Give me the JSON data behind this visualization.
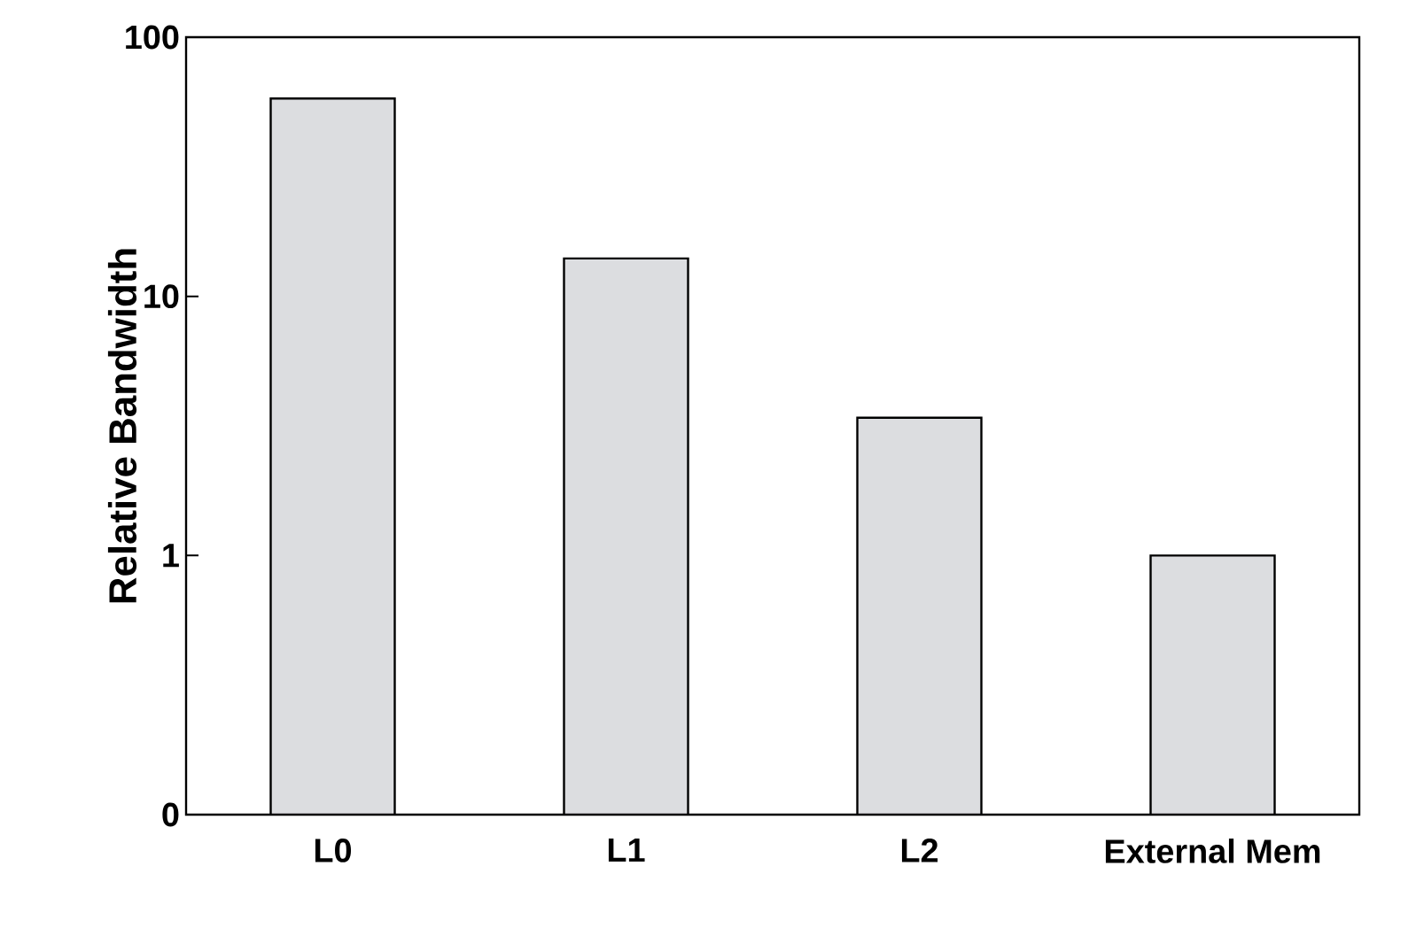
{
  "chart_data": {
    "type": "bar",
    "ylabel": "Relative Bandwidth",
    "categories": [
      "L0",
      "L1",
      "L2",
      "External Mem"
    ],
    "values": [
      58,
      14,
      3.4,
      1.0
    ],
    "color": "#dcdde0",
    "log": "y",
    "ylim": [
      0.1,
      100
    ],
    "yticks": [
      {
        "value": 0.1,
        "label": "0"
      },
      1,
      10,
      100
    ]
  }
}
